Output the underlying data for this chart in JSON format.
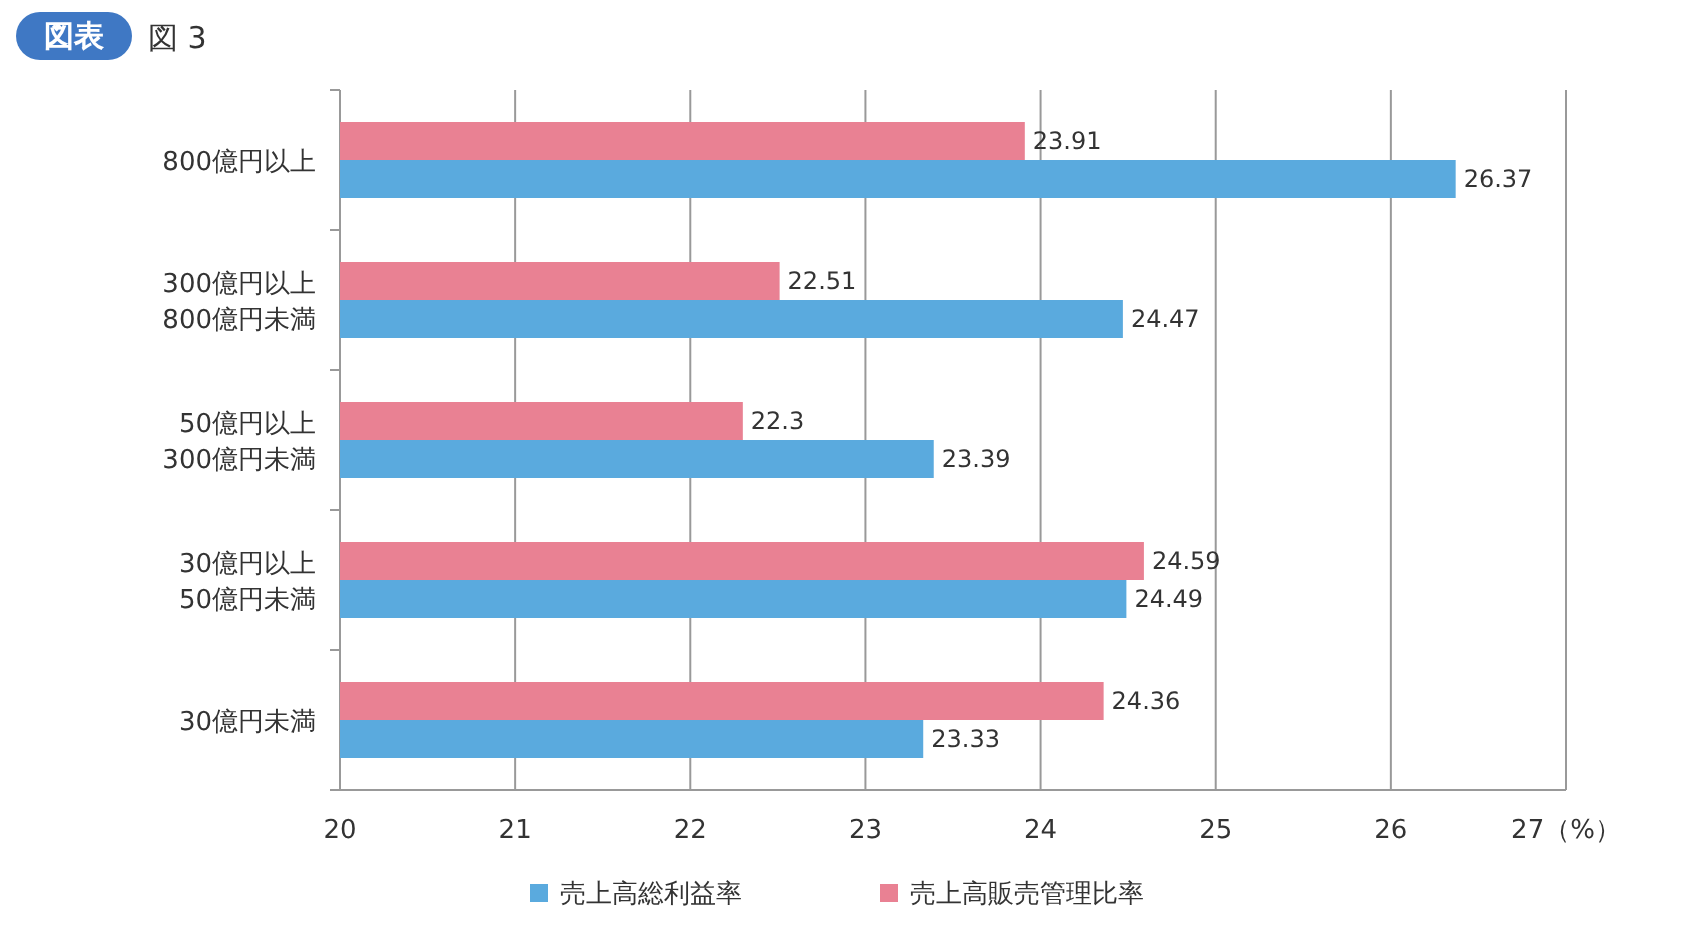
{
  "chart_data": {
    "type": "bar",
    "orientation": "horizontal",
    "title": "図 3",
    "annotations": [
      "図表"
    ],
    "categories": [
      "800億円以上",
      "300億円以上\n800億円未満",
      "50億円以上\n300億円未満",
      "30億円以上\n50億円未満",
      "30億円未満"
    ],
    "series": [
      {
        "name": "売上高総利益率",
        "color": "#5aaade",
        "values": [
          26.37,
          24.47,
          23.39,
          24.49,
          23.33
        ]
      },
      {
        "name": "売上高販売管理比率",
        "color": "#e98193",
        "values": [
          23.91,
          22.51,
          22.3,
          24.59,
          24.36
        ]
      }
    ],
    "xlim": [
      20,
      27
    ],
    "xticks": [
      20,
      21,
      22,
      23,
      24,
      25,
      26,
      {
        "value": 27,
        "label": "27（%）"
      }
    ],
    "grid": "x",
    "legend": "bottom",
    "data_labels": true
  }
}
